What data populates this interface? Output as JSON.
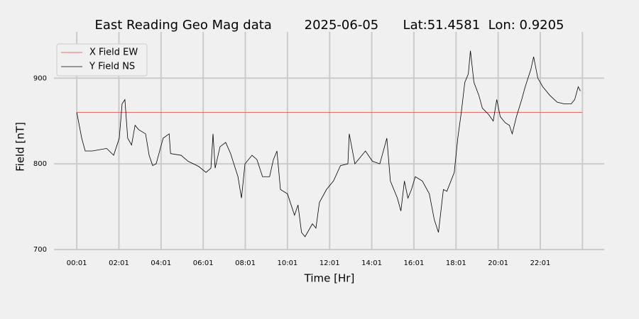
{
  "chart_data": {
    "type": "line",
    "title": "East Reading Geo Mag data        2025-06-05      Lat:51.4581  Lon: 0.9205",
    "x_label": "Time  [Hr]",
    "y_label": "Field  [nT]",
    "xlim": [
      -64,
      1503
    ],
    "ylim": [
      700,
      954
    ],
    "xticks": [
      {
        "value": 1,
        "label": "00:01"
      },
      {
        "value": 121,
        "label": "02:01"
      },
      {
        "value": 241,
        "label": "04:01"
      },
      {
        "value": 361,
        "label": "06:01"
      },
      {
        "value": 481,
        "label": "08:01"
      },
      {
        "value": 601,
        "label": "10:01"
      },
      {
        "value": 721,
        "label": "12:01"
      },
      {
        "value": 841,
        "label": "14:01"
      },
      {
        "value": 961,
        "label": "16:01"
      },
      {
        "value": 1081,
        "label": "18:01"
      },
      {
        "value": 1201,
        "label": "20:01"
      },
      {
        "value": 1321,
        "label": "22:01"
      },
      {
        "value": 1441,
        "label": null
      }
    ],
    "yticks": [
      700,
      800,
      900
    ],
    "grid": true,
    "legend": "upper left",
    "series": [
      {
        "name": "X Field EW",
        "color": "#e8413a",
        "x": [
          1,
          1441
        ],
        "values": [
          860,
          860
        ]
      },
      {
        "name": "Y Field NS",
        "color": "#000000",
        "x": [
          1,
          15,
          25,
          45,
          86,
          106,
          122,
          130,
          138,
          146,
          157,
          167,
          177,
          197,
          207,
          217,
          227,
          247,
          264,
          268,
          298,
          318,
          348,
          369,
          383,
          389,
          395,
          409,
          425,
          439,
          460,
          470,
          480,
          500,
          514,
          530,
          550,
          561,
          571,
          581,
          601,
          621,
          631,
          641,
          651,
          672,
          682,
          692,
          712,
          732,
          752,
          773,
          777,
          793,
          813,
          823,
          843,
          864,
          884,
          894,
          914,
          924,
          934,
          944,
          954,
          965,
          985,
          1005,
          1019,
          1031,
          1045,
          1055,
          1076,
          1086,
          1096,
          1106,
          1116,
          1122,
          1132,
          1146,
          1156,
          1173,
          1187,
          1197,
          1207,
          1221,
          1233,
          1241,
          1253,
          1268,
          1278,
          1294,
          1302,
          1314,
          1328,
          1338,
          1348,
          1369,
          1389,
          1409,
          1419,
          1429,
          1435
        ],
        "values": [
          860,
          830,
          815,
          815,
          818,
          810,
          830,
          870,
          875,
          830,
          822,
          845,
          840,
          835,
          810,
          798,
          800,
          830,
          835,
          812,
          810,
          803,
          797,
          790,
          795,
          835,
          795,
          820,
          825,
          812,
          785,
          760,
          800,
          810,
          805,
          785,
          785,
          805,
          815,
          770,
          765,
          740,
          752,
          720,
          715,
          730,
          725,
          755,
          770,
          780,
          798,
          800,
          835,
          800,
          810,
          815,
          803,
          800,
          830,
          780,
          760,
          745,
          780,
          760,
          770,
          785,
          780,
          765,
          735,
          720,
          770,
          768,
          790,
          830,
          860,
          895,
          905,
          932,
          895,
          880,
          865,
          858,
          850,
          875,
          855,
          848,
          845,
          835,
          855,
          875,
          890,
          910,
          925,
          900,
          890,
          885,
          880,
          872,
          870,
          870,
          875,
          890,
          885
        ]
      }
    ]
  }
}
